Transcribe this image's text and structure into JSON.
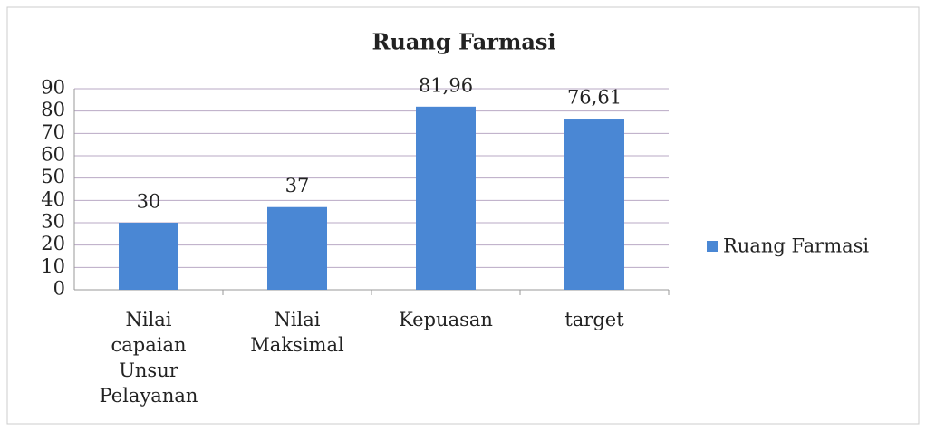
{
  "chart_data": {
    "type": "bar",
    "title": "Ruang Farmasi",
    "categories": [
      "Nilai capaian Unsur Pelayanan",
      "Nilai Maksimal",
      "Kepuasan",
      "target"
    ],
    "series": [
      {
        "name": "Ruang Farmasi",
        "color": "#4a87d4",
        "values": [
          30,
          37,
          81.96,
          76.61
        ],
        "value_labels": [
          "30",
          "37",
          "81,96",
          "76,61"
        ]
      }
    ],
    "ylim": [
      0,
      90
    ],
    "yticks": [
      0,
      10,
      20,
      30,
      40,
      50,
      60,
      70,
      80,
      90
    ],
    "grid": true,
    "legend": "right"
  }
}
